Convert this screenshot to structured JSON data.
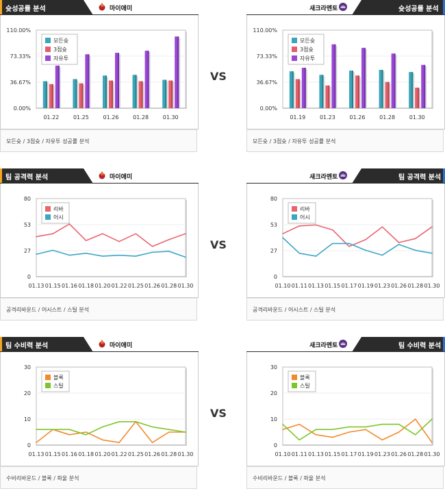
{
  "vs_label": "VS",
  "colors": {
    "header_dark": "#2b2b2b",
    "header_accent_orange": "#f5a623",
    "header_accent_blue": "#2f6fd1",
    "bar_all": "#3aa6b9",
    "bar_three": "#e55e6b",
    "bar_free": "#9a47d6",
    "line_rebound": "#e8646f",
    "line_assist": "#3aa6c6",
    "line_block": "#f28a2a",
    "line_steal": "#7dc52b"
  },
  "sections": [
    {
      "id": "shooting",
      "left": {
        "title": "슛성공률 분석",
        "team": "마이애미",
        "logo_icon": "heat-logo-icon",
        "footer": "모든슛 / 3점슛 / 자유투 성공률 분석"
      },
      "right": {
        "title": "슛성공률 분석",
        "team": "새크라멘토",
        "logo_icon": "kings-logo-icon",
        "footer": "모든슛 / 3점슛 / 자유투 성공률 분석"
      }
    },
    {
      "id": "offense",
      "left": {
        "title": "팀 공격력 분석",
        "team": "마이애미",
        "logo_icon": "heat-logo-icon",
        "footer": "공격리바운드 / 어시스트 / 스틸 분석"
      },
      "right": {
        "title": "팀 공격력 분석",
        "team": "새크라멘토",
        "logo_icon": "kings-logo-icon",
        "footer": "공격리바운드 / 어시스트 / 스틸 분석"
      }
    },
    {
      "id": "defense",
      "left": {
        "title": "팀 수비력 분석",
        "team": "마이애미",
        "logo_icon": "heat-logo-icon",
        "footer": "수비리바운드 / 블록 / 파울 분석"
      },
      "right": {
        "title": "팀 수비력 분석",
        "team": "새크라멘토",
        "logo_icon": "kings-logo-icon",
        "footer": "수비리바운드 / 블록 / 파울 분석"
      }
    }
  ],
  "chart_data": [
    {
      "id": "shooting-left",
      "type": "bar",
      "categories": [
        "01.22",
        "01.25",
        "01.26",
        "01.28",
        "01.30"
      ],
      "yticks": [
        "0.00%",
        "36.67%",
        "73.33%",
        "110.00%"
      ],
      "ylim": [
        0,
        110
      ],
      "legend_position": "top-left",
      "series": [
        {
          "name": "모든슛",
          "values": [
            38,
            41,
            46,
            47,
            40
          ]
        },
        {
          "name": "3점슛",
          "values": [
            34,
            35,
            39,
            38,
            39
          ]
        },
        {
          "name": "자유투",
          "values": [
            60,
            76,
            78,
            81,
            101
          ]
        }
      ]
    },
    {
      "id": "shooting-right",
      "type": "bar",
      "categories": [
        "01.19",
        "01.23",
        "01.26",
        "01.28",
        "01.30"
      ],
      "yticks": [
        "0.00%",
        "36.67%",
        "73.33%",
        "110.00%"
      ],
      "ylim": [
        0,
        110
      ],
      "legend_position": "top-left",
      "series": [
        {
          "name": "모든슛",
          "values": [
            52,
            47,
            53,
            54,
            51
          ]
        },
        {
          "name": "3점슛",
          "values": [
            41,
            32,
            46,
            37,
            29
          ]
        },
        {
          "name": "자유투",
          "values": [
            57,
            90,
            85,
            77,
            61
          ]
        }
      ]
    },
    {
      "id": "offense-left",
      "type": "line",
      "categories": [
        "01.13",
        "01.15",
        "01.16",
        "01.18",
        "01.20",
        "01.22",
        "01.25",
        "01.26",
        "01.28",
        "01.30"
      ],
      "yticks": [
        "0",
        "27",
        "53",
        "80"
      ],
      "ylim": [
        0,
        80
      ],
      "legend_position": "top-left",
      "series": [
        {
          "name": "리바",
          "values": [
            41,
            44,
            54,
            37,
            44,
            36,
            44,
            31,
            38,
            44
          ]
        },
        {
          "name": "어시",
          "values": [
            23,
            27,
            22,
            24,
            21,
            22,
            21,
            25,
            26,
            20
          ]
        }
      ]
    },
    {
      "id": "offense-right",
      "type": "line",
      "categories": [
        "01.10",
        "01.11",
        "01.13",
        "01.15",
        "01.17",
        "01.19",
        "01.23",
        "01.26",
        "01.28",
        "01.30"
      ],
      "yticks": [
        "0",
        "27",
        "53",
        "80"
      ],
      "ylim": [
        0,
        80
      ],
      "legend_position": "top-left",
      "series": [
        {
          "name": "리바",
          "values": [
            44,
            52,
            53,
            48,
            31,
            38,
            51,
            35,
            39,
            51
          ]
        },
        {
          "name": "어시",
          "values": [
            40,
            24,
            21,
            34,
            34,
            27,
            22,
            33,
            27,
            24
          ]
        }
      ]
    },
    {
      "id": "defense-left",
      "type": "line",
      "categories": [
        "01.13",
        "01.15",
        "01.16",
        "01.18",
        "01.20",
        "01.22",
        "01.25",
        "01.26",
        "01.28",
        "01.30"
      ],
      "yticks": [
        "0",
        "10",
        "20",
        "30"
      ],
      "ylim": [
        0,
        30
      ],
      "legend_position": "top-left",
      "series": [
        {
          "name": "블록",
          "values": [
            1,
            6,
            4,
            5,
            2,
            1,
            9,
            1,
            5,
            5
          ]
        },
        {
          "name": "스틸",
          "values": [
            6,
            6,
            6,
            4,
            7,
            9,
            9,
            7,
            6,
            5
          ]
        }
      ]
    },
    {
      "id": "defense-right",
      "type": "line",
      "categories": [
        "01.10",
        "01.11",
        "01.13",
        "01.15",
        "01.17",
        "01.19",
        "01.23",
        "01.26",
        "01.28",
        "01.30"
      ],
      "yticks": [
        "0",
        "10",
        "20",
        "30"
      ],
      "ylim": [
        0,
        30
      ],
      "legend_position": "top-left",
      "series": [
        {
          "name": "블록",
          "values": [
            6,
            8,
            4,
            3,
            5,
            6,
            2,
            5,
            10,
            1
          ]
        },
        {
          "name": "스틸",
          "values": [
            8,
            2,
            6,
            6,
            7,
            7,
            8,
            8,
            4,
            10
          ]
        }
      ]
    }
  ]
}
